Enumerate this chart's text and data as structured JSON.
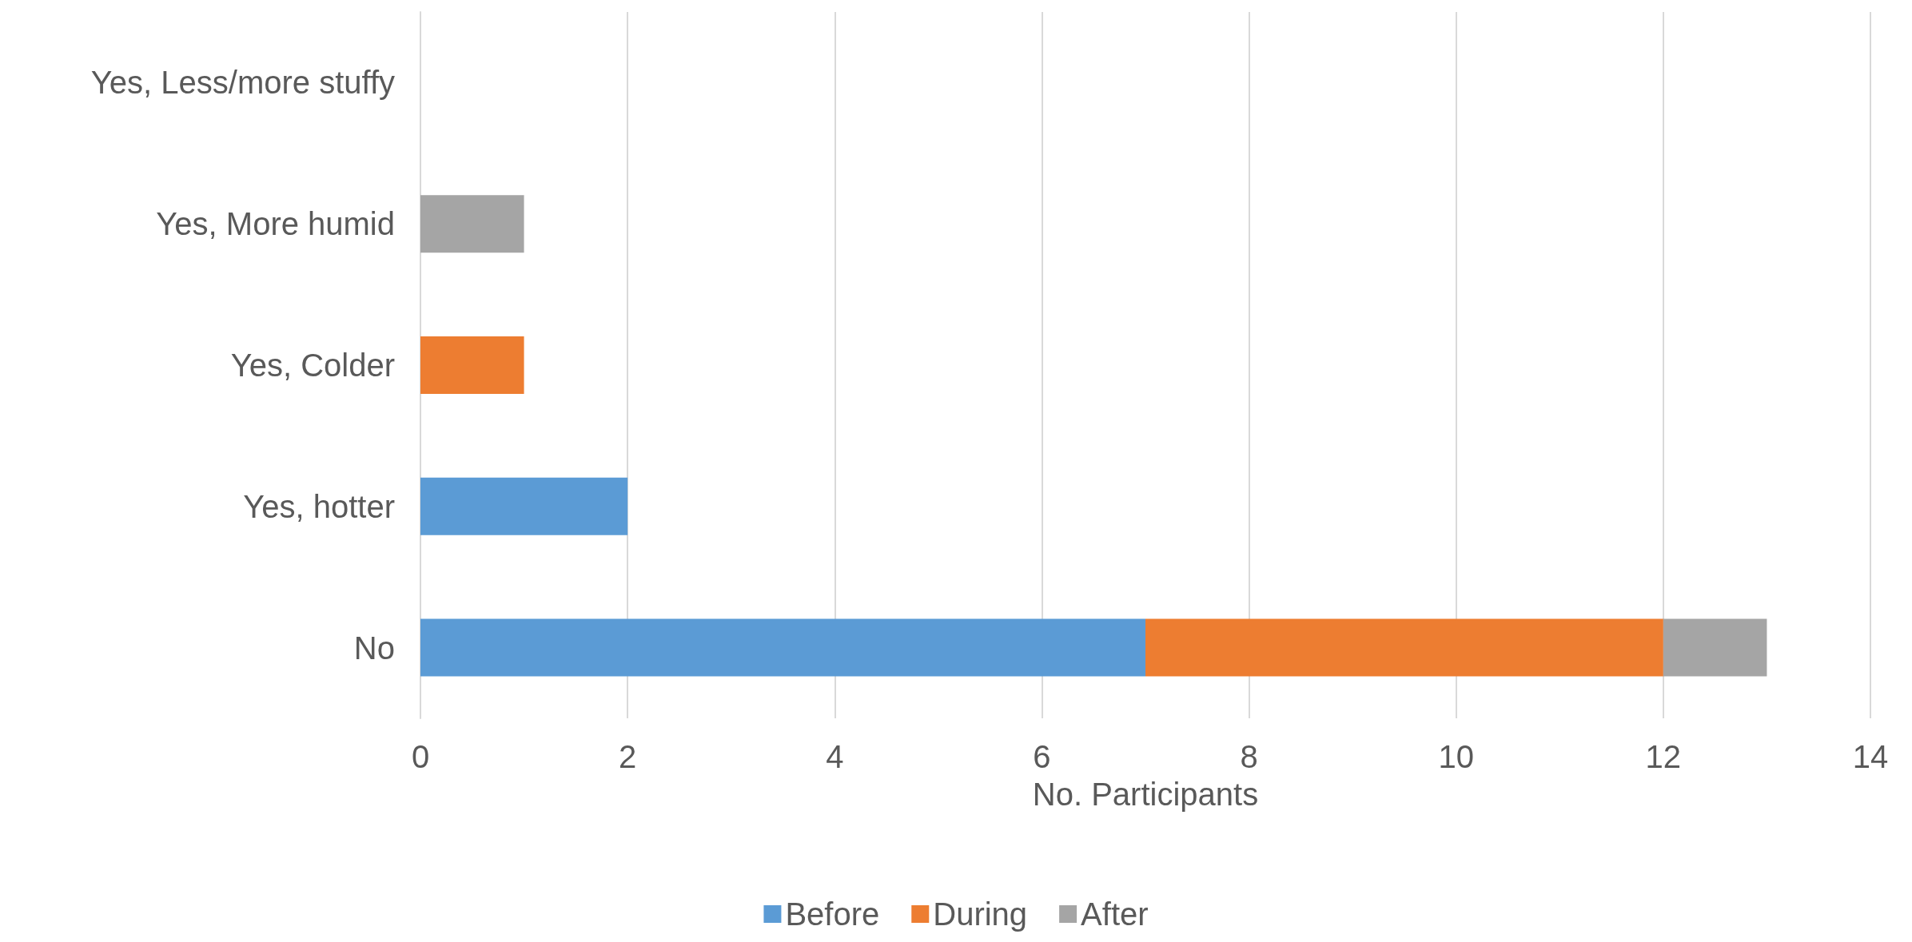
{
  "chart_data": {
    "type": "bar",
    "orientation": "horizontal",
    "stacked": true,
    "categories": [
      "Yes, Less/more stuffy",
      "Yes, More humid",
      "Yes, Colder",
      "Yes, hotter",
      "No"
    ],
    "series": [
      {
        "name": "Before",
        "color": "#5b9bd5",
        "values": [
          0,
          0,
          0,
          2,
          7
        ]
      },
      {
        "name": "During",
        "color": "#ed7d31",
        "values": [
          0,
          0,
          1,
          0,
          5
        ]
      },
      {
        "name": "After",
        "color": "#a5a5a5",
        "values": [
          0,
          1,
          0,
          0,
          1
        ]
      }
    ],
    "xlabel": "No. Participants",
    "xlim": [
      0,
      14
    ],
    "xticks": [
      0,
      2,
      4,
      6,
      8,
      10,
      12,
      14
    ],
    "grid": "x",
    "legend": "bottom"
  }
}
